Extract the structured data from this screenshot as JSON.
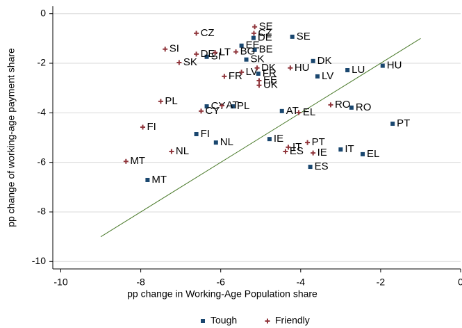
{
  "chart_data": {
    "type": "scatter",
    "x_label": "pp change in Working-Age Population share",
    "y_label": "pp change of working-age payment share",
    "xlim": [
      -10.2,
      0
    ],
    "ylim": [
      -10.3,
      0.3
    ],
    "xticks": [
      -10,
      -8,
      -6,
      -4,
      -2,
      0
    ],
    "yticks": [
      -10,
      -8,
      -6,
      -4,
      -2,
      0
    ],
    "grid": true,
    "reference_line": {
      "x": [
        -9,
        -1
      ],
      "y": [
        -9,
        -1
      ],
      "color": "#4a7a2a"
    },
    "series": [
      {
        "name": "Tough",
        "color": "#1a476f",
        "marker": "square",
        "labels": [
          "SE",
          "DK",
          "LU",
          "HU",
          "LV",
          "DE",
          "EE",
          "BE",
          "SK",
          "SI",
          "FR",
          "MT",
          "FI",
          "NL",
          "CY",
          "PL",
          "AT",
          "RO",
          "PT",
          "IE",
          "IT",
          "EL",
          "ES"
        ],
        "x": [
          -4.21,
          -3.69,
          -2.83,
          -1.95,
          -3.58,
          -5.18,
          -5.48,
          -5.15,
          -5.36,
          -6.35,
          -5.06,
          -7.83,
          -6.61,
          -6.12,
          -6.35,
          -5.7,
          -4.47,
          -2.73,
          -1.7,
          -4.78,
          -3.0,
          -2.45,
          -3.76
        ],
        "values": [
          -0.93,
          -1.91,
          -2.28,
          -2.1,
          -2.53,
          -0.98,
          -1.29,
          -1.46,
          -1.85,
          -1.74,
          -2.42,
          -6.71,
          -4.86,
          -5.2,
          -3.74,
          -3.74,
          -3.93,
          -3.79,
          -4.44,
          -5.06,
          -5.48,
          -5.67,
          -6.18
        ]
      },
      {
        "name": "Friendly",
        "color": "#90353b",
        "marker": "plus",
        "labels": [
          "SE",
          "CZ",
          "CZ",
          "SI",
          "SK",
          "DE",
          "LT",
          "BG",
          "FR",
          "LV",
          "DK",
          "HU",
          "EE",
          "UK",
          "PL",
          "CY",
          "AT",
          "EL",
          "RO",
          "FI",
          "NL",
          "MT",
          "PT",
          "IT",
          "ES",
          "IE"
        ],
        "x": [
          -5.15,
          -5.17,
          -6.61,
          -7.39,
          -7.04,
          -6.61,
          -6.14,
          -5.62,
          -5.91,
          -5.48,
          -5.09,
          -4.26,
          -5.04,
          -5.04,
          -7.5,
          -6.49,
          -5.97,
          -4.05,
          -3.25,
          -7.95,
          -7.23,
          -8.37,
          -3.83,
          -4.31,
          -4.38,
          -3.69
        ],
        "values": [
          -0.53,
          -0.79,
          -0.79,
          -1.43,
          -1.97,
          -1.63,
          -1.57,
          -1.54,
          -2.53,
          -2.36,
          -2.19,
          -2.19,
          -2.7,
          -2.89,
          -3.54,
          -3.93,
          -3.71,
          -3.99,
          -3.68,
          -4.58,
          -5.56,
          -5.96,
          -5.2,
          -5.39,
          -5.56,
          -5.62
        ]
      }
    ]
  }
}
